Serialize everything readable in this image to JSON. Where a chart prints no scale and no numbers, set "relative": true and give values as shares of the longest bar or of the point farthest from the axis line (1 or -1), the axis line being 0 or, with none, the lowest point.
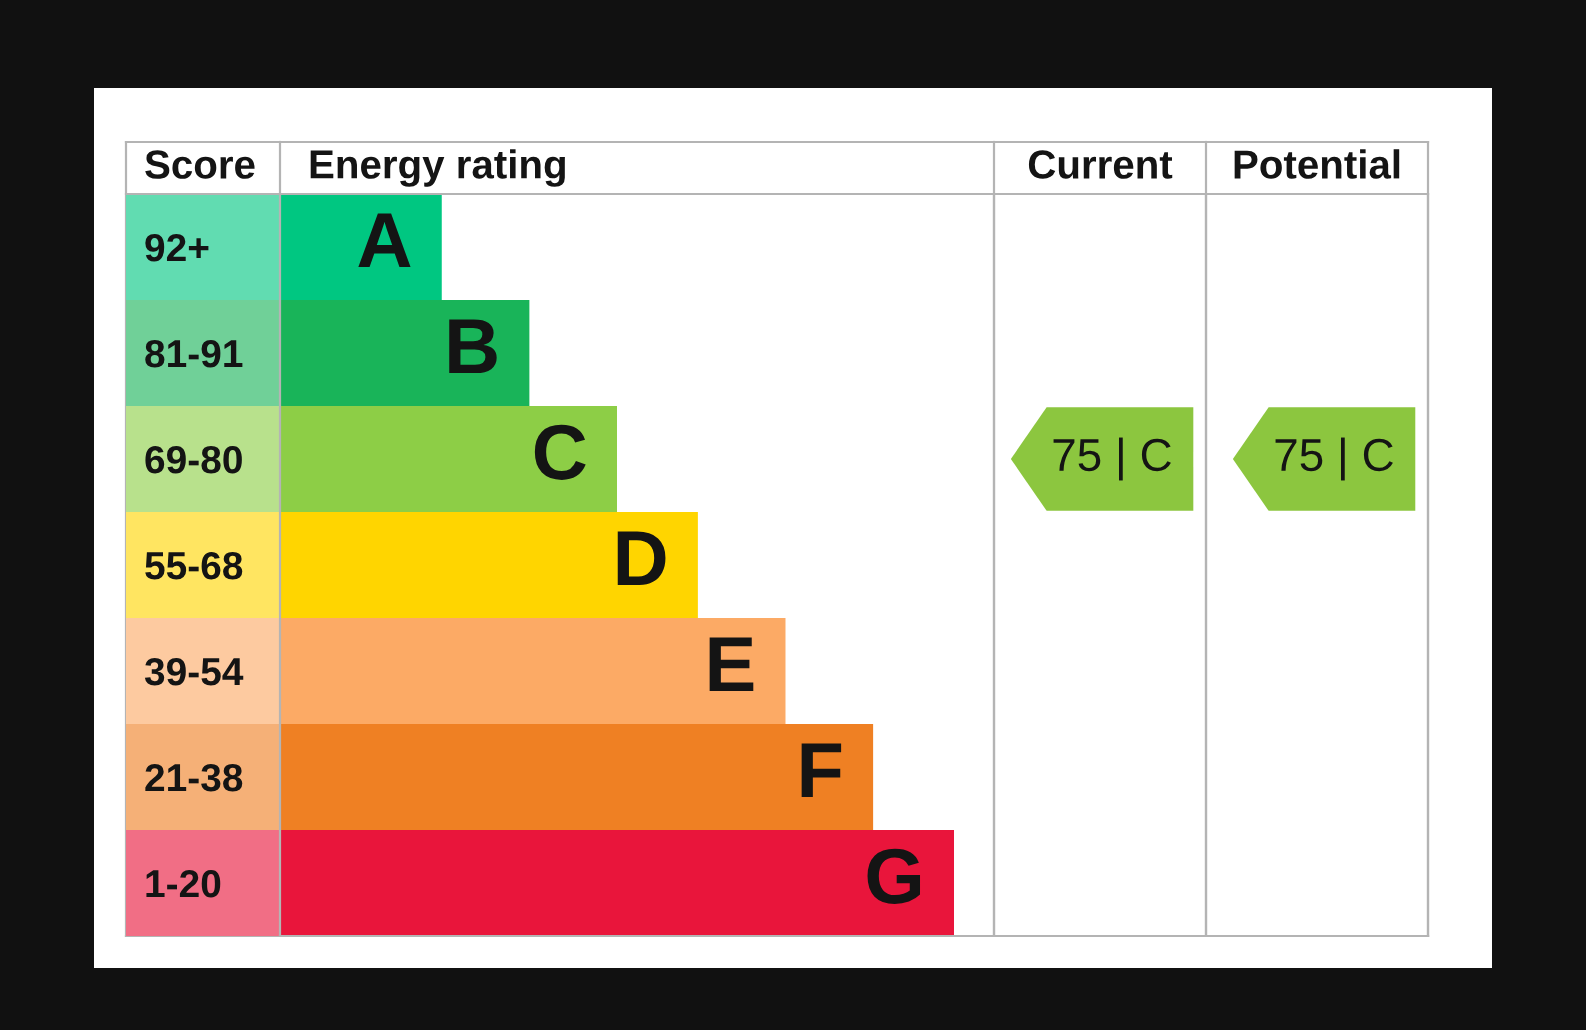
{
  "chart_data": [
    {
      "type": "bar",
      "orientation": "horizontal",
      "relative": true,
      "title": "Energy rating",
      "ylabel": "Score",
      "categories": [
        "92+",
        "81-91",
        "69-80",
        "55-68",
        "39-54",
        "21-38",
        "1-20"
      ],
      "values": [
        0.24,
        0.37,
        0.5,
        0.62,
        0.75,
        0.88,
        1
      ],
      "colors": [
        "#00c781",
        "#19b459",
        "#8dce46",
        "#ffd500",
        "#fcaa65",
        "#ef8023",
        "#e9153b"
      ],
      "annotations": [
        {
          "text": "A",
          "x": 0.24,
          "y": "92+"
        },
        {
          "text": "B",
          "x": 0.37,
          "y": "81-91"
        },
        {
          "text": "C",
          "x": 0.5,
          "y": "69-80"
        },
        {
          "text": "D",
          "x": 0.62,
          "y": "55-68"
        },
        {
          "text": "E",
          "x": 0.75,
          "y": "39-54"
        },
        {
          "text": "F",
          "x": 0.88,
          "y": "21-38"
        },
        {
          "text": "G",
          "x": 1,
          "y": "1-20"
        }
      ]
    },
    {
      "type": "other",
      "title": "Current",
      "color": "#8cc63f",
      "annotations": [
        {
          "text": "75 | C",
          "y": "69-80"
        }
      ]
    },
    {
      "type": "other",
      "title": "Potential",
      "color": "#8cc63f",
      "annotations": [
        {
          "text": "75 | C",
          "y": "69-80"
        }
      ]
    }
  ]
}
